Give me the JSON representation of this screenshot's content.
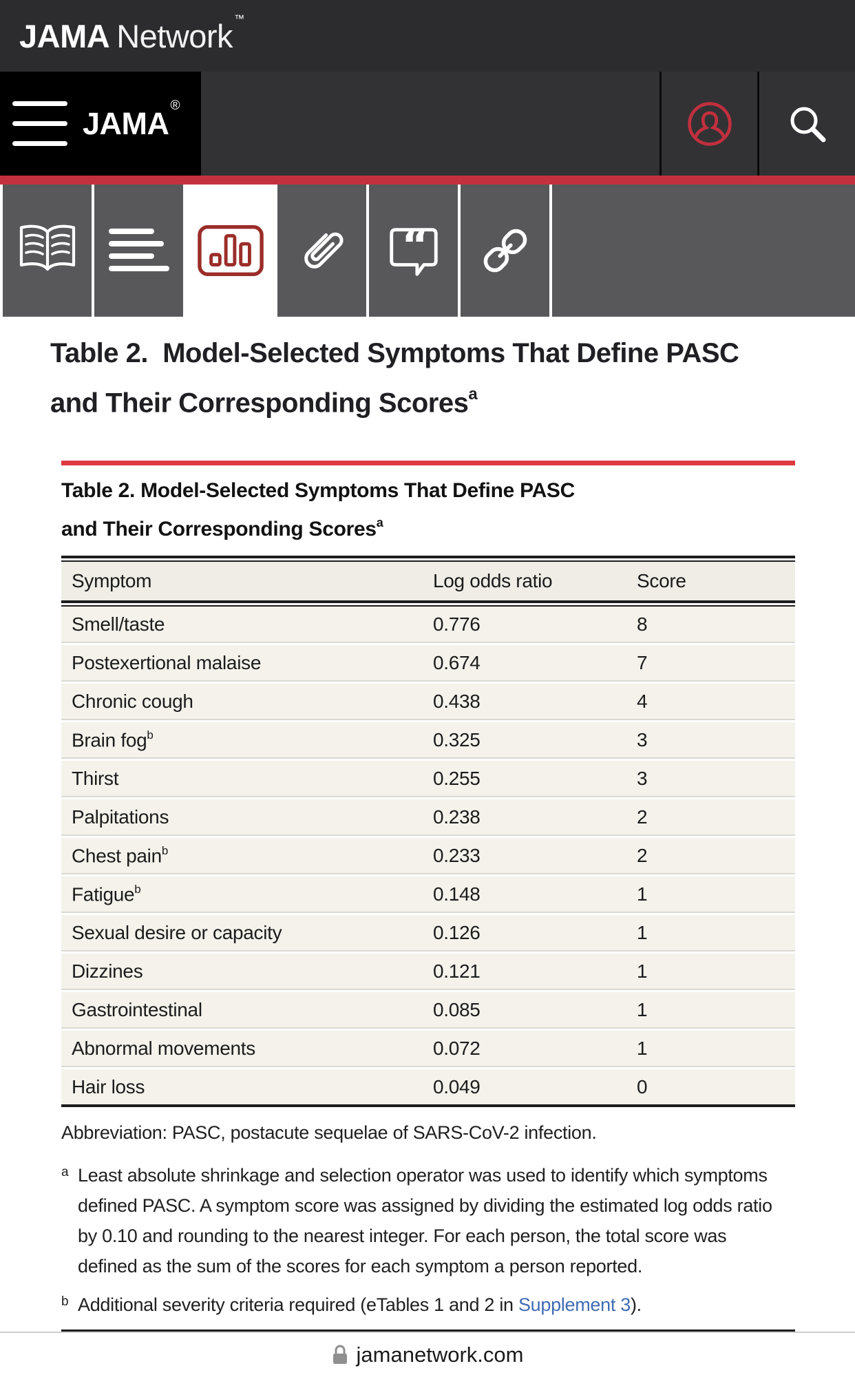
{
  "topbar": {
    "brand_bold": "JAMA",
    "brand_light": "Network",
    "brand_tm": "™"
  },
  "navbar": {
    "journal": "JAMA",
    "journal_reg": "®",
    "icons": [
      "hamburger-menu-icon",
      "profile-icon",
      "search-icon"
    ],
    "profile_icon_color": "#c22f3e"
  },
  "redbar_color": "#c4313e",
  "toolbar": {
    "active_tab": "figures-tab",
    "tabs": [
      {
        "icon": "open-book-icon",
        "active": false
      },
      {
        "icon": "article-text-icon",
        "active": false
      },
      {
        "icon": "bar-chart-icon",
        "active": true,
        "icon_color": "#9b2d29"
      },
      {
        "icon": "paperclip-icon",
        "active": false
      },
      {
        "icon": "quote-bubble-icon",
        "active": false
      },
      {
        "icon": "link-icon",
        "active": false
      }
    ]
  },
  "page": {
    "title_line1": "Table 2.  Model-Selected Symptoms That Define PASC",
    "title_line2": "and Their Corresponding Scores",
    "title_sup": "a"
  },
  "card": {
    "accent_color": "#de3a41",
    "title_line1": "Table 2. Model-Selected Symptoms That Define PASC",
    "title_line2": "and Their Corresponding Scores",
    "title_sup": "a",
    "table": {
      "columns": [
        "Symptom",
        "Log odds ratio",
        "Score"
      ],
      "rows": [
        {
          "symptom": "Smell/taste",
          "sup": "",
          "log_odds": "0.776",
          "score": "8"
        },
        {
          "symptom": "Postexertional malaise",
          "sup": "",
          "log_odds": "0.674",
          "score": "7"
        },
        {
          "symptom": "Chronic cough",
          "sup": "",
          "log_odds": "0.438",
          "score": "4"
        },
        {
          "symptom": "Brain fog",
          "sup": "b",
          "log_odds": "0.325",
          "score": "3"
        },
        {
          "symptom": "Thirst",
          "sup": "",
          "log_odds": "0.255",
          "score": "3"
        },
        {
          "symptom": "Palpitations",
          "sup": "",
          "log_odds": "0.238",
          "score": "2"
        },
        {
          "symptom": "Chest pain",
          "sup": "b",
          "log_odds": "0.233",
          "score": "2"
        },
        {
          "symptom": "Fatigue",
          "sup": "b",
          "log_odds": "0.148",
          "score": "1"
        },
        {
          "symptom": "Sexual desire or capacity",
          "sup": "",
          "log_odds": "0.126",
          "score": "1"
        },
        {
          "symptom": "Dizzines",
          "sup": "",
          "log_odds": "0.121",
          "score": "1"
        },
        {
          "symptom": "Gastrointestinal",
          "sup": "",
          "log_odds": "0.085",
          "score": "1"
        },
        {
          "symptom": "Abnormal movements",
          "sup": "",
          "log_odds": "0.072",
          "score": "1"
        },
        {
          "symptom": "Hair loss",
          "sup": "",
          "log_odds": "0.049",
          "score": "0"
        }
      ]
    },
    "abbreviation": "Abbreviation: PASC, postacute sequelae of SARS-CoV-2 infection.",
    "footnote_a": {
      "marker": "a",
      "text": "Least absolute shrinkage and selection operator was used to identify which symptoms defined PASC. A symptom score was assigned by dividing the estimated log odds ratio by 0.10 and rounding to the nearest integer. For each person, the total score was defined as the sum of the scores for each symptom a person reported."
    },
    "footnote_b": {
      "marker": "b",
      "pre": "Additional severity criteria required (eTables 1 and 2 in ",
      "link": "Supplement 3",
      "post": ")."
    },
    "link_color": "#3f6cb4"
  },
  "browser": {
    "url": "jamanetwork.com",
    "lock_icon": "lock-icon"
  }
}
